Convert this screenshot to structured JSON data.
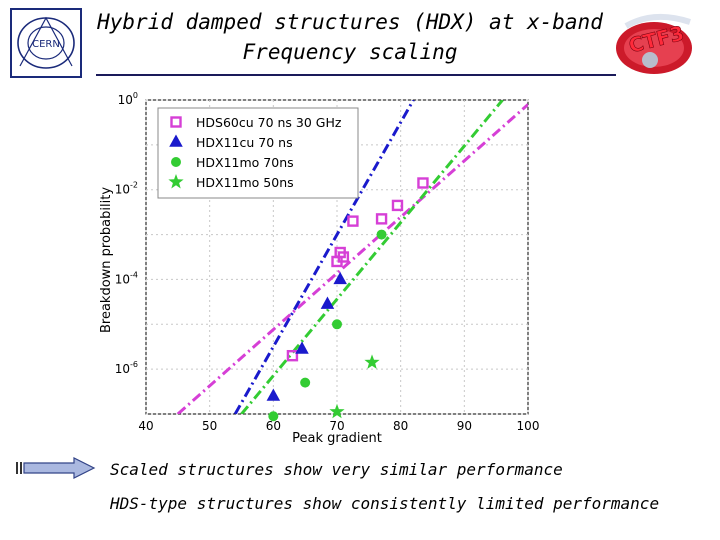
{
  "header": {
    "title_line1": "Hybrid damped structures (HDX) at x-band",
    "title_line2": "Frequency scaling"
  },
  "logos": {
    "cern_text": "CERN",
    "ctf3_text": "CTF3"
  },
  "chart_data": {
    "type": "scatter",
    "xlabel": "Peak gradient",
    "ylabel": "Breakdown probability",
    "xlim": [
      40,
      100
    ],
    "x_ticks": [
      40,
      50,
      60,
      70,
      80,
      90,
      100
    ],
    "yscale": "log",
    "ylim_exp": [
      -7,
      0
    ],
    "y_ticks": [
      {
        "exp": 0,
        "base": "10",
        "sup": "0"
      },
      {
        "exp": -2,
        "base": "10",
        "sup": "-2"
      },
      {
        "exp": -4,
        "base": "10",
        "sup": "-4"
      },
      {
        "exp": -6,
        "base": "10",
        "sup": "-6"
      }
    ],
    "grid": true,
    "legend_position": "top-left",
    "series": [
      {
        "name": "HDS60cu 70 ns 30 GHz",
        "color": "#d63fd6",
        "marker": "square",
        "points": [
          [
            63,
            -5.7
          ],
          [
            70.5,
            -3.4
          ],
          [
            72.5,
            -2.7
          ],
          [
            77,
            -2.65
          ],
          [
            79.5,
            -2.35
          ],
          [
            83.5,
            -1.85
          ],
          [
            70,
            -3.6
          ],
          [
            71,
            -3.5
          ]
        ],
        "fit": [
          [
            45,
            -7.0
          ],
          [
            100,
            -0.1
          ]
        ]
      },
      {
        "name": "HDX11cu 70 ns",
        "color": "#1a1acc",
        "marker": "triangle",
        "points": [
          [
            60,
            -6.6
          ],
          [
            64.5,
            -5.55
          ],
          [
            68.5,
            -4.55
          ],
          [
            70.5,
            -4.0
          ]
        ],
        "fit": [
          [
            54,
            -7.0
          ],
          [
            82,
            0
          ]
        ]
      },
      {
        "name": "HDX11mo 70ns",
        "color": "#33cc33",
        "marker": "circle",
        "points": [
          [
            60,
            -7.05
          ],
          [
            65,
            -6.3
          ],
          [
            70,
            -5.0
          ],
          [
            77,
            -3.0
          ]
        ],
        "fit": [
          [
            55,
            -7.0
          ],
          [
            96,
            0
          ]
        ]
      },
      {
        "name": "HDX11mo 50ns",
        "color": "#33cc33",
        "marker": "star",
        "points": [
          [
            70,
            -6.95
          ],
          [
            75.5,
            -5.85
          ]
        ],
        "fit": null
      }
    ]
  },
  "captions": {
    "line1": "Scaled structures show very similar performance",
    "line2": "HDS-type structures show consistently limited performance"
  }
}
